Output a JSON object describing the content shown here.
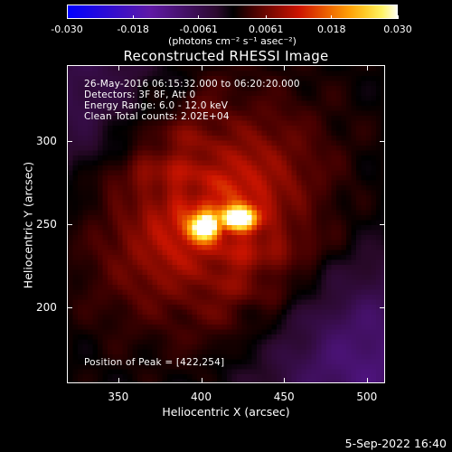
{
  "colorbar": {
    "tick_labels": [
      "-0.030",
      "-0.018",
      "-0.0061",
      "0.0061",
      "0.018",
      "0.030"
    ],
    "tick_values": [
      -0.03,
      -0.018,
      -0.0061,
      0.0061,
      0.018,
      0.03
    ],
    "range": [
      -0.03,
      0.03
    ],
    "units_label": "(photons cm⁻² s⁻¹ asec⁻²)"
  },
  "image": {
    "title": "Reconstructed RHESSI Image",
    "info_lines": [
      "26-May-2016 06:15:32.000 to 06:20:20.000",
      "Detectors: 3F 8F, Att 0",
      "Energy Range: 6.0 - 12.0 keV",
      "Clean     Total counts: 2.02E+04"
    ],
    "peak_label": "Position of Peak = [422,254]",
    "peak_position": [
      422,
      254
    ]
  },
  "axes": {
    "xlabel": "Heliocentric X (arcsec)",
    "ylabel": "Heliocentric Y (arcsec)",
    "xrange": [
      319,
      511
    ],
    "yrange": [
      154,
      346
    ],
    "xticks": [
      350,
      400,
      450,
      500
    ],
    "yticks": [
      200,
      250,
      300
    ]
  },
  "footer": {
    "timestamp": "5-Sep-2022 16:40"
  }
}
